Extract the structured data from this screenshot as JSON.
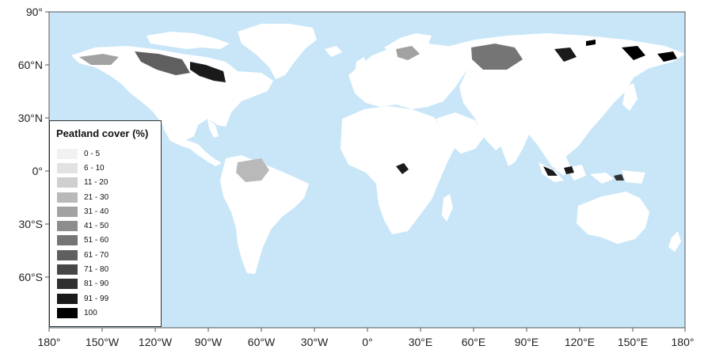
{
  "colors": {
    "ocean": "#c8e6f8",
    "land": "#ffffff",
    "axis": "#555555"
  },
  "latitude_labels": [
    "90°",
    "60°N",
    "30°N",
    "0°",
    "30°S",
    "60°S"
  ],
  "longitude_labels": [
    "180°",
    "150°W",
    "120°W",
    "90°W",
    "60°W",
    "30°W",
    "0°",
    "30°E",
    "60°E",
    "90°E",
    "120°E",
    "150°E",
    "180°"
  ],
  "legend": {
    "title": "Peatland cover (%)",
    "items": [
      {
        "label": "0 - 5",
        "color": "#f1f1f1"
      },
      {
        "label": "6 - 10",
        "color": "#e2e2e2"
      },
      {
        "label": "11 - 20",
        "color": "#cfcfcf"
      },
      {
        "label": "21 - 30",
        "color": "#b9b9b9"
      },
      {
        "label": "31 - 40",
        "color": "#a2a2a2"
      },
      {
        "label": "41 - 50",
        "color": "#8d8d8d"
      },
      {
        "label": "51 - 60",
        "color": "#757575"
      },
      {
        "label": "61 - 70",
        "color": "#5f5f5f"
      },
      {
        "label": "71 - 80",
        "color": "#474747"
      },
      {
        "label": "81 - 90",
        "color": "#303030"
      },
      {
        "label": "91 - 99",
        "color": "#1a1a1a"
      },
      {
        "label": "100",
        "color": "#000000"
      }
    ]
  }
}
